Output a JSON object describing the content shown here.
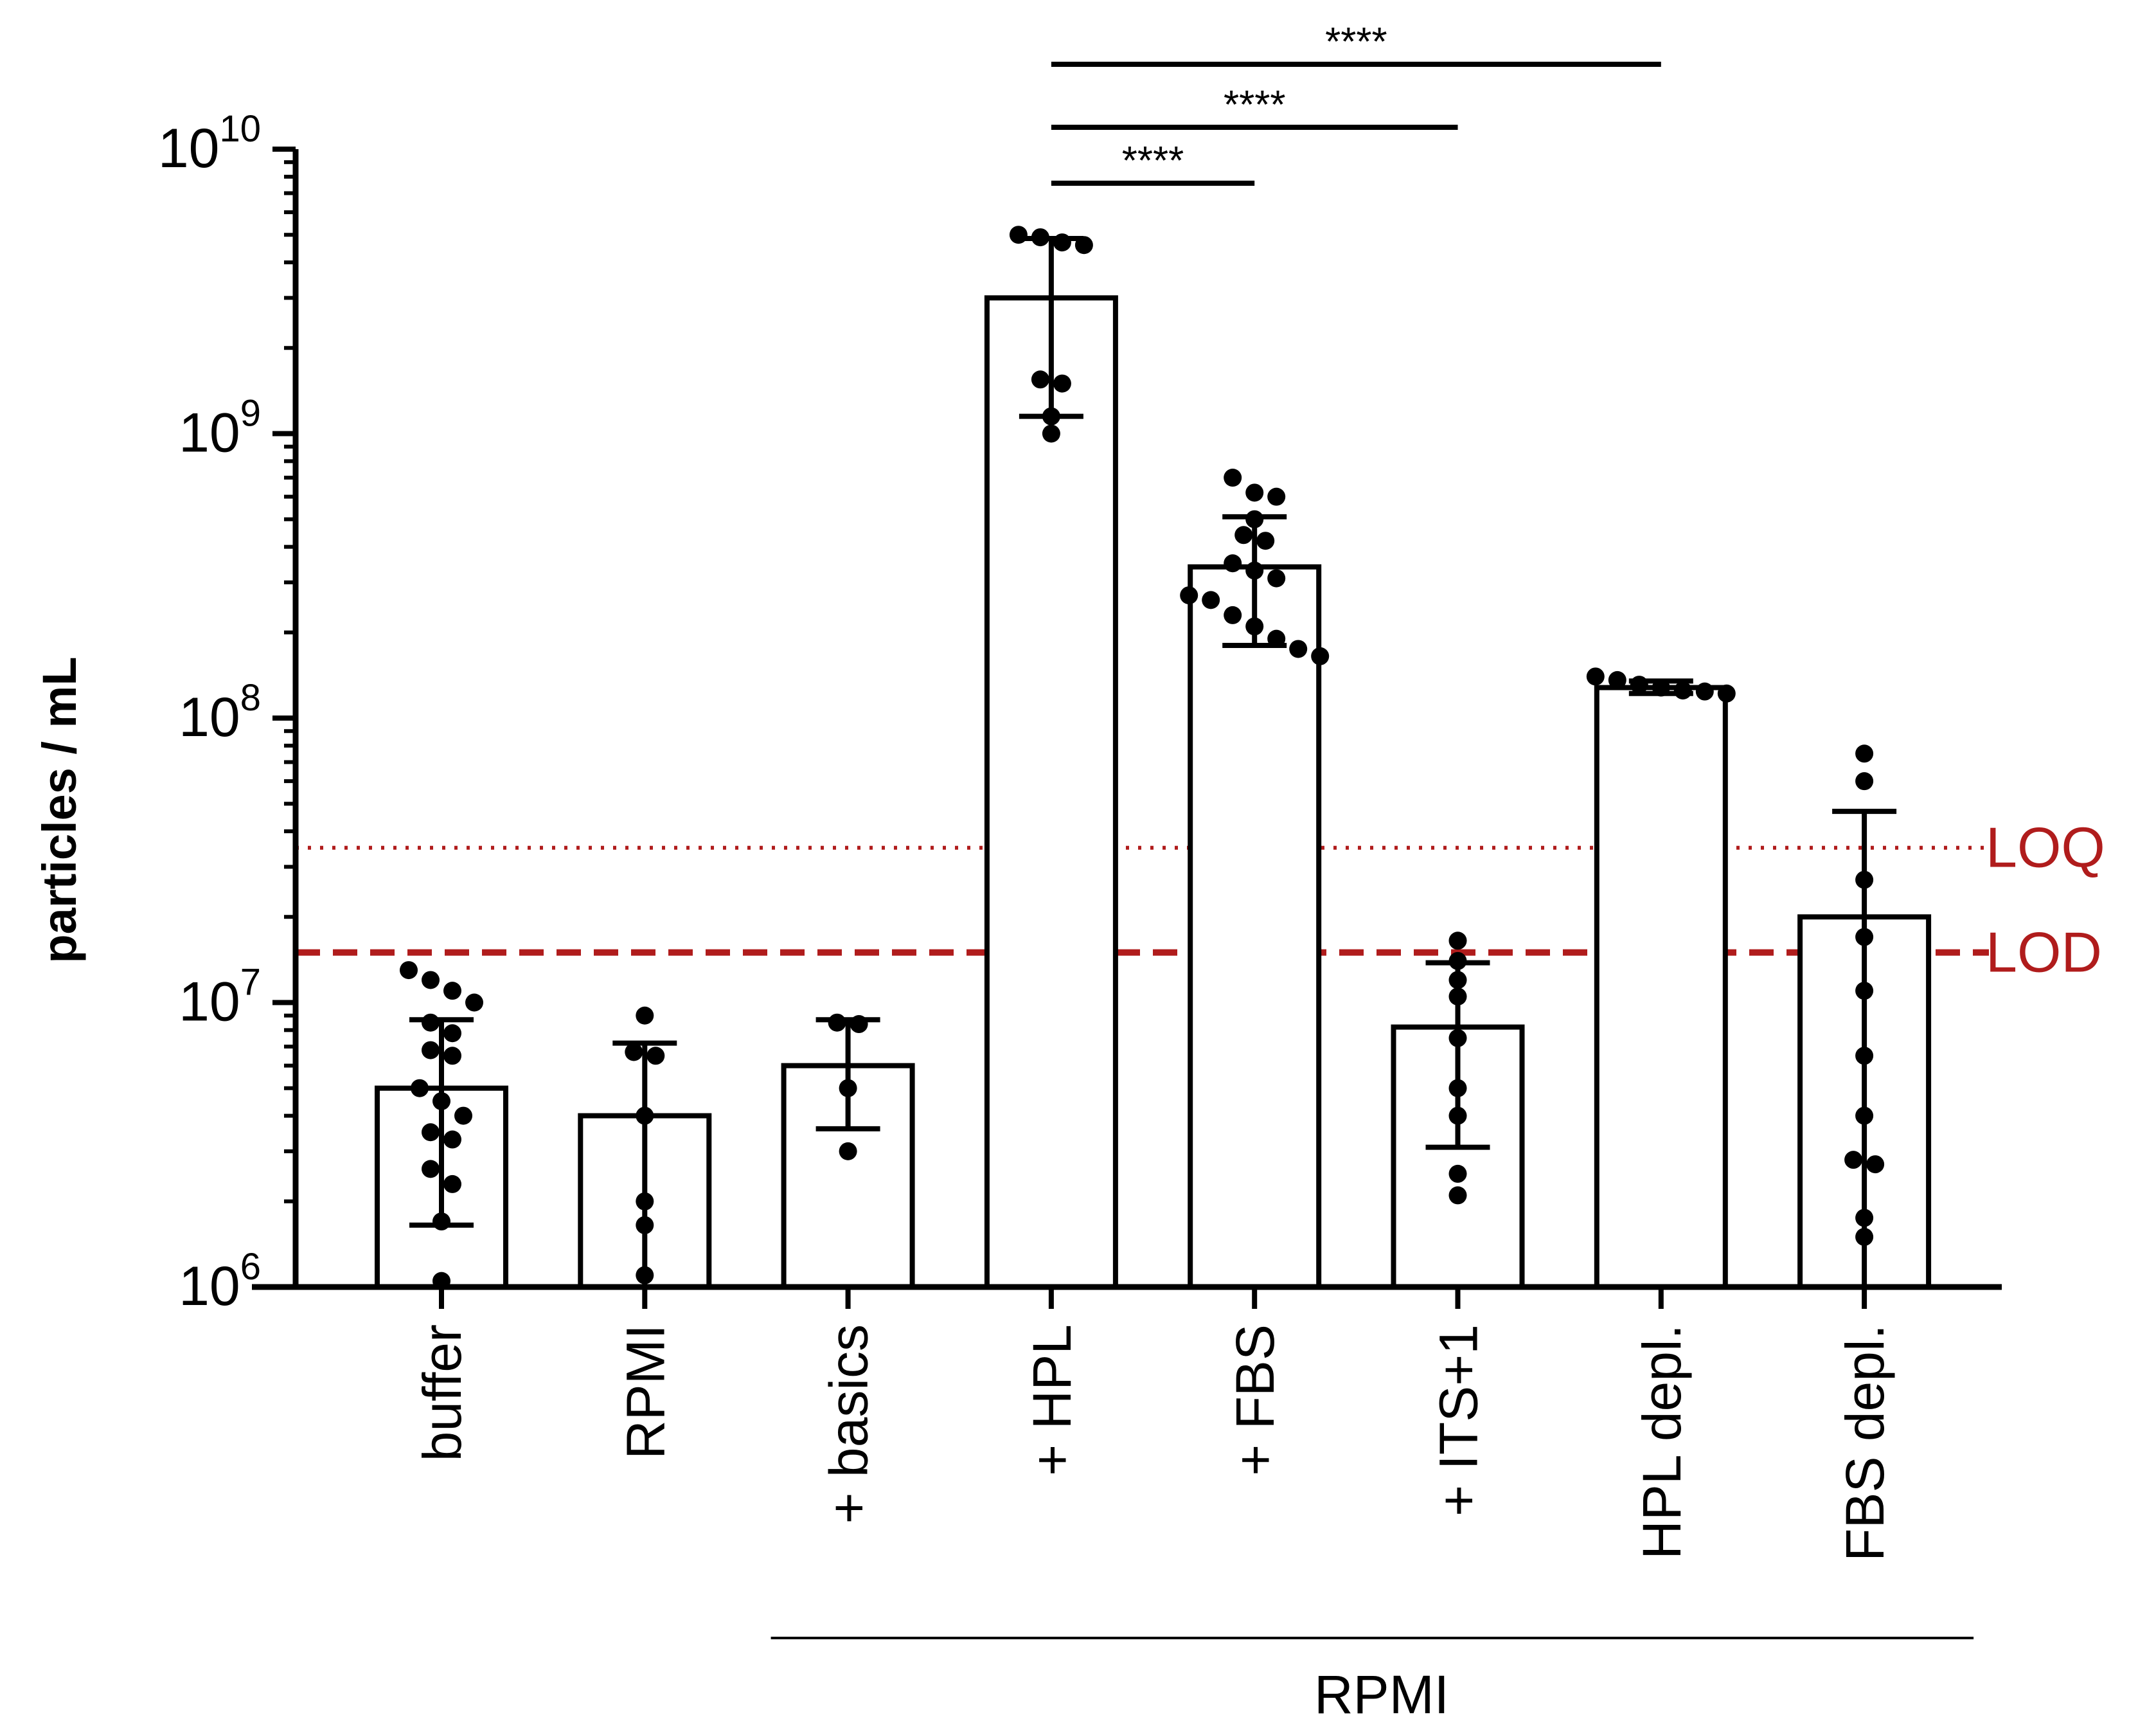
{
  "chart_data": {
    "type": "bar",
    "yscale": "log",
    "ylabel": "particles / mL",
    "ylim": [
      1000000,
      10000000000
    ],
    "yticks": [
      {
        "value": 1000000,
        "base": "10",
        "exp": "6"
      },
      {
        "value": 10000000,
        "base": "10",
        "exp": "7"
      },
      {
        "value": 100000000,
        "base": "10",
        "exp": "8"
      },
      {
        "value": 1000000000,
        "base": "10",
        "exp": "9"
      },
      {
        "value": 10000000000,
        "base": "10",
        "exp": "10"
      }
    ],
    "categories": [
      "buffer",
      "RPMI",
      "+ basics",
      "+ HPL",
      "+ FBS",
      "+ ITS+1",
      "HPL depl.",
      "FBS depl."
    ],
    "bars": [
      {
        "label": "buffer",
        "mean": 5000000,
        "err_low": 1650000,
        "err_high": 8700000,
        "points": [
          13000000,
          11000000,
          12000000,
          10000000,
          8500000,
          7800000,
          6500000,
          6800000,
          5000000,
          4500000,
          4000000,
          3500000,
          3300000,
          2600000,
          2300000,
          1700000,
          1050000
        ]
      },
      {
        "label": "RPMI",
        "mean": 4000000,
        "err_low": 1000000,
        "err_high": 7200000,
        "points": [
          9000000,
          6700000,
          6500000,
          4000000,
          2000000,
          1650000,
          1100000
        ]
      },
      {
        "label": "+ basics",
        "mean": 6000000,
        "err_low": 3600000,
        "err_high": 8700000,
        "points": [
          8500000,
          8400000,
          5000000,
          3000000
        ]
      },
      {
        "label": "+ HPL",
        "mean": 3000000000,
        "err_low": 1150000000,
        "err_high": 4850000000,
        "points": [
          5000000000,
          4900000000,
          4700000000,
          4600000000,
          1550000000,
          1500000000,
          1150000000,
          1000000000
        ]
      },
      {
        "label": "+ FBS",
        "mean": 340000000,
        "err_low": 180000000,
        "err_high": 510000000,
        "points": [
          700000000,
          620000000,
          600000000,
          500000000,
          440000000,
          420000000,
          350000000,
          330000000,
          310000000,
          270000000,
          260000000,
          230000000,
          210000000,
          190000000,
          175000000,
          165000000
        ]
      },
      {
        "label": "+ ITS+1",
        "mean": 8200000,
        "err_low": 3100000,
        "err_high": 13800000,
        "points": [
          16500000,
          14000000,
          12000000,
          10500000,
          7500000,
          5000000,
          4000000,
          2500000,
          2100000
        ]
      },
      {
        "label": "HPL depl.",
        "mean": 128000000,
        "err_low": 122000000,
        "err_high": 135000000,
        "points": [
          140000000,
          136000000,
          131000000,
          128000000,
          125000000,
          124000000,
          122000000
        ]
      },
      {
        "label": "FBS depl.",
        "mean": 20000000,
        "err_low": 1000000,
        "err_high": 47000000,
        "points": [
          75000000,
          60000000,
          27000000,
          17000000,
          11000000,
          6500000,
          4000000,
          2800000,
          2700000,
          1750000,
          1500000
        ]
      }
    ],
    "reference_lines": [
      {
        "label": "LOQ",
        "value": 35000000,
        "style": "dotted",
        "color": "#b01c1c"
      },
      {
        "label": "LOD",
        "value": 15000000,
        "style": "dashed",
        "color": "#b01c1c"
      }
    ],
    "significance": [
      {
        "from": "+ HPL",
        "to": "+ FBS",
        "label": "****"
      },
      {
        "from": "+ HPL",
        "to": "+ ITS+1",
        "label": "****"
      },
      {
        "from": "+ HPL",
        "to": "HPL depl.",
        "label": "****"
      }
    ],
    "group_bracket": {
      "from": "+ basics",
      "to": "FBS depl.",
      "label": "RPMI"
    }
  }
}
